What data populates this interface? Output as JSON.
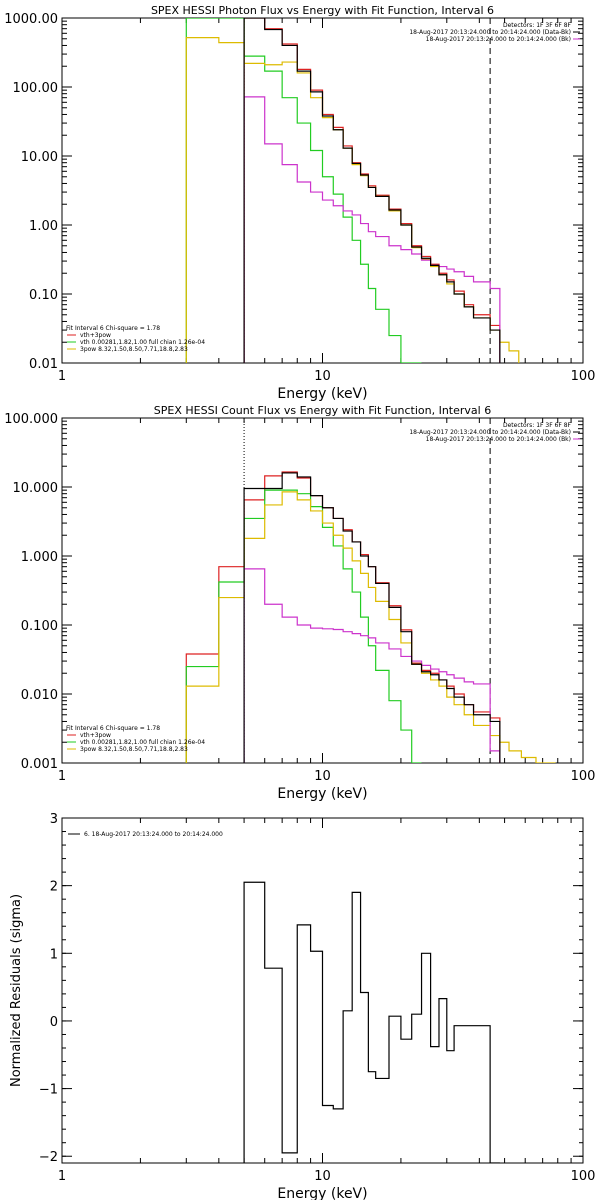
{
  "chart_data": [
    {
      "type": "line",
      "title": "SPEX HESSI Photon Flux vs Energy with Fit Function, Interval 6",
      "xlabel": "Energy (keV)",
      "ylabel": "",
      "xscale": "log",
      "yscale": "log",
      "xlim": [
        1,
        100
      ],
      "ylim": [
        0.01,
        1000
      ],
      "xticks": [
        "1",
        "10",
        "100"
      ],
      "yticks": [
        "0.01",
        "0.10",
        "1.00",
        "10.00",
        "100.00",
        "1000.00"
      ],
      "vlines": [
        {
          "x": 5.0,
          "style": "dotted",
          "color": "#000000"
        },
        {
          "x": 44.0,
          "style": "dashed",
          "color": "#000000"
        }
      ],
      "info_lines": [
        {
          "text": "Detectors: 1F 3F 6F 8F",
          "color": "#000000"
        },
        {
          "text": "18-Aug-2017 20:13:24.000 to 20:14:24.000 (Data-Bk)",
          "color": "#000000"
        },
        {
          "text": "18-Aug-2017 20:13:24.000 to 20:14:24.000 (Bk)",
          "color": "#cc33cc"
        }
      ],
      "legend_title": "Fit Interval 6   Chi-square = 1.78",
      "legend": [
        {
          "text": "vth+3pow",
          "color": "#dd2222"
        },
        {
          "text": "vth 0.00281,1.82,1.00  full chian 1.26e-04",
          "color": "#22cc22"
        },
        {
          "text": "3pow 8.32,1.50,8.50,7.71,18.8,2.83",
          "color": "#ddbb00"
        }
      ],
      "series": [
        {
          "name": "vth+3pow",
          "color": "#dd2222",
          "x": [
            5,
            6,
            7,
            8,
            9,
            10,
            11,
            12,
            13,
            14,
            15,
            16,
            18,
            20,
            22,
            24,
            26,
            28,
            30,
            32,
            35,
            38,
            44
          ],
          "y": [
            1000,
            700,
            420,
            180,
            90,
            40,
            26,
            14,
            8,
            5.5,
            3.7,
            2.7,
            1.7,
            1.05,
            0.5,
            0.35,
            0.27,
            0.2,
            0.16,
            0.11,
            0.07,
            0.05,
            0.035
          ]
        },
        {
          "name": "vth 0.00281,1.82,1.00  full chian 1.26e-04",
          "color": "#22cc22",
          "x": [
            3,
            4,
            5,
            6,
            7,
            8,
            9,
            10,
            11,
            12,
            13,
            14,
            15,
            16,
            18,
            20,
            22
          ],
          "y": [
            1000,
            1000,
            280,
            170,
            70,
            30,
            12,
            5,
            2.8,
            1.3,
            0.6,
            0.27,
            0.12,
            0.06,
            0.025,
            0.01,
            0.01
          ]
        },
        {
          "name": "3pow 8.32,1.50,8.50,7.71,18.8,2.83",
          "color": "#ddbb00",
          "x": [
            3,
            4,
            5,
            6,
            7,
            8,
            9,
            10,
            11,
            12,
            13,
            14,
            15,
            16,
            18,
            20,
            22,
            24,
            26,
            28,
            30,
            32,
            35,
            38,
            44,
            48,
            52
          ],
          "y": [
            520,
            440,
            220,
            210,
            230,
            160,
            70,
            36,
            24,
            13,
            7.5,
            5.2,
            3.5,
            2.6,
            1.6,
            1.0,
            0.47,
            0.32,
            0.25,
            0.19,
            0.14,
            0.1,
            0.065,
            0.045,
            0.03,
            0.02,
            0.015
          ]
        },
        {
          "name": "Bk",
          "color": "#cc33cc",
          "x": [
            5,
            6,
            7,
            8,
            9,
            10,
            11,
            12,
            13,
            14,
            15,
            16,
            18,
            20,
            22,
            24,
            26,
            28,
            30,
            32,
            35,
            38,
            44
          ],
          "y": [
            72,
            15,
            7.5,
            4.2,
            3.0,
            2.3,
            1.9,
            1.6,
            1.4,
            1.05,
            0.8,
            0.68,
            0.5,
            0.44,
            0.38,
            0.31,
            0.26,
            0.25,
            0.23,
            0.21,
            0.18,
            0.15,
            0.12
          ]
        },
        {
          "name": "Data-Bk",
          "color": "#000000",
          "x": [
            5,
            6,
            7,
            8,
            9,
            10,
            11,
            12,
            13,
            14,
            15,
            16,
            18,
            20,
            22,
            24,
            26,
            28,
            30,
            32,
            35,
            38,
            44
          ],
          "y": [
            1000,
            680,
            400,
            170,
            85,
            38,
            24,
            13,
            7.8,
            5.3,
            3.5,
            2.6,
            1.65,
            1.0,
            0.48,
            0.33,
            0.26,
            0.19,
            0.15,
            0.1,
            0.065,
            0.045,
            0.03
          ]
        }
      ]
    },
    {
      "type": "line",
      "title": "SPEX HESSI Count Flux vs Energy with Fit Function, Interval 6",
      "xlabel": "Energy (keV)",
      "ylabel": "",
      "xscale": "log",
      "yscale": "log",
      "xlim": [
        1,
        100
      ],
      "ylim": [
        0.001,
        100
      ],
      "xticks": [
        "1",
        "10",
        "100"
      ],
      "yticks": [
        "0.001",
        "0.010",
        "0.100",
        "1.000",
        "10.000",
        "100.000"
      ],
      "vlines": [
        {
          "x": 5.0,
          "style": "dotted",
          "color": "#000000"
        },
        {
          "x": 44.0,
          "style": "dashed",
          "color": "#000000"
        }
      ],
      "info_lines": [
        {
          "text": "Detectors: 1F 3F 6F 8F",
          "color": "#000000"
        },
        {
          "text": "18-Aug-2017 20:13:24.000 to 20:14:24.000 (Data-Bk)",
          "color": "#000000"
        },
        {
          "text": "18-Aug-2017 20:13:24.000 to 20:14:24.000 (Bk)",
          "color": "#cc33cc"
        }
      ],
      "legend_title": "Fit Interval 6   Chi-square = 1.78",
      "legend": [
        {
          "text": "vth+3pow",
          "color": "#dd2222"
        },
        {
          "text": "vth 0.00281,1.82,1.00  full chian 1.26e-04",
          "color": "#22cc22"
        },
        {
          "text": "3pow 8.32,1.50,8.50,7.71,18.8,2.83",
          "color": "#ddbb00"
        }
      ],
      "series": [
        {
          "name": "vth+3pow",
          "color": "#dd2222",
          "x": [
            3,
            4,
            5,
            6,
            7,
            8,
            9,
            10,
            11,
            12,
            13,
            14,
            15,
            16,
            18,
            20,
            22,
            24,
            26,
            28,
            30,
            32,
            35,
            38,
            44
          ],
          "y": [
            0.038,
            0.7,
            6.5,
            14.5,
            16.5,
            13.5,
            7.5,
            5,
            3.5,
            2.4,
            1.6,
            1.05,
            0.7,
            0.41,
            0.19,
            0.085,
            0.028,
            0.022,
            0.02,
            0.016,
            0.013,
            0.01,
            0.007,
            0.0055,
            0.0045
          ]
        },
        {
          "name": "vth 0.00281,1.82,1.00  full chian 1.26e-04",
          "color": "#22cc22",
          "x": [
            3,
            4,
            5,
            6,
            7,
            8,
            9,
            10,
            11,
            12,
            13,
            14,
            15,
            16,
            18,
            20,
            22
          ],
          "y": [
            0.025,
            0.42,
            3.5,
            9,
            9,
            8,
            5.2,
            2.6,
            1.4,
            0.65,
            0.3,
            0.13,
            0.05,
            0.022,
            0.008,
            0.003,
            0.001
          ]
        },
        {
          "name": "3pow 8.32,1.50,8.50,7.71,18.8,2.83",
          "color": "#ddbb00",
          "x": [
            3,
            4,
            5,
            6,
            7,
            8,
            9,
            10,
            11,
            12,
            13,
            14,
            15,
            16,
            18,
            20,
            22,
            24,
            26,
            28,
            30,
            32,
            35,
            38,
            44,
            48,
            52,
            58,
            66,
            72
          ],
          "y": [
            0.013,
            0.25,
            1.8,
            5.5,
            8.5,
            6.5,
            4.5,
            3.0,
            2.0,
            1.3,
            0.85,
            0.56,
            0.35,
            0.22,
            0.12,
            0.055,
            0.027,
            0.02,
            0.016,
            0.013,
            0.009,
            0.007,
            0.005,
            0.0035,
            0.0025,
            0.002,
            0.0015,
            0.0012,
            0.001,
            0.001
          ]
        },
        {
          "name": "Bk",
          "color": "#cc33cc",
          "x": [
            5,
            6,
            7,
            8,
            9,
            10,
            11,
            12,
            13,
            14,
            15,
            16,
            18,
            20,
            22,
            24,
            26,
            28,
            30,
            32,
            35,
            38,
            44
          ],
          "y": [
            0.65,
            0.2,
            0.13,
            0.1,
            0.09,
            0.088,
            0.086,
            0.08,
            0.075,
            0.07,
            0.065,
            0.055,
            0.045,
            0.035,
            0.03,
            0.026,
            0.023,
            0.021,
            0.019,
            0.017,
            0.015,
            0.014,
            0.0015
          ]
        },
        {
          "name": "Data-Bk",
          "color": "#000000",
          "x": [
            5,
            6,
            7,
            8,
            9,
            10,
            11,
            12,
            13,
            14,
            15,
            16,
            18,
            20,
            22,
            24,
            26,
            28,
            30,
            32,
            35,
            38,
            44
          ],
          "y": [
            9.5,
            9.5,
            16,
            14,
            7.5,
            5,
            3.5,
            2.3,
            1.6,
            1.0,
            0.7,
            0.4,
            0.18,
            0.08,
            0.027,
            0.021,
            0.019,
            0.016,
            0.012,
            0.009,
            0.007,
            0.005,
            0.004
          ]
        }
      ]
    },
    {
      "type": "line",
      "title": "",
      "xlabel": "Energy (keV)",
      "ylabel": "Normalized Residuals (sigma)",
      "xscale": "log",
      "yscale": "linear",
      "xlim": [
        1,
        100
      ],
      "ylim": [
        -2.1,
        3
      ],
      "xticks": [
        "1",
        "10",
        "100"
      ],
      "yticks": [
        "-2",
        "-1",
        "0",
        "1",
        "2",
        "3"
      ],
      "legend": [
        {
          "text": "6. 18-Aug-2017 20:13:24.000 to 20:14:24.000",
          "color": "#000000"
        }
      ],
      "series": [
        {
          "name": "6. 18-Aug-2017 20:13:24.000 to 20:14:24.000",
          "color": "#000000",
          "x": [
            5,
            6,
            7,
            8,
            9,
            10,
            11,
            12,
            13,
            14,
            15,
            16,
            18,
            20,
            22,
            24,
            26,
            28,
            30,
            32,
            35,
            38,
            44
          ],
          "y": [
            2.05,
            0.78,
            -1.95,
            1.42,
            1.03,
            -1.25,
            -1.3,
            0.15,
            1.9,
            0.42,
            -0.75,
            -0.85,
            0.07,
            -0.27,
            0.1,
            1.0,
            -0.38,
            0.33,
            -0.44,
            -0.07,
            -0.07,
            -0.07,
            -2.1
          ]
        }
      ]
    }
  ]
}
